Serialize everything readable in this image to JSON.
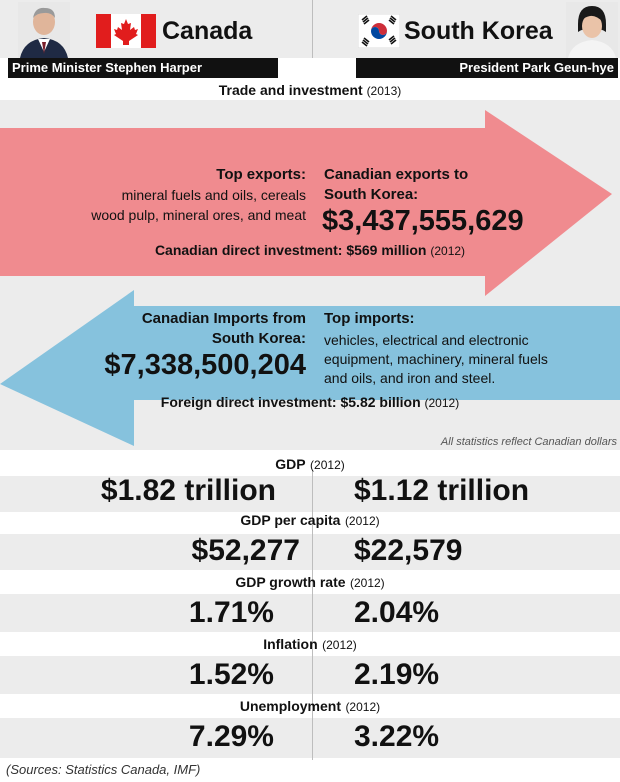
{
  "header": {
    "left_country": "Canada",
    "right_country": "South Korea",
    "left_leader": "Prime Minister Stephen Harper",
    "right_leader": "President Park Geun-hye",
    "left_flag_icon": "canada-flag-icon",
    "right_flag_icon": "south-korea-flag-icon"
  },
  "trade": {
    "title": "Trade and investment",
    "title_year": "(2013)",
    "exports_label": "Top exports:",
    "exports_line1": "mineral fuels and oils, cereals",
    "exports_line2": "wood pulp, mineral ores, and meat",
    "exports_to_line1": "Canadian exports to",
    "exports_to_line2": "South Korea:",
    "exports_value": "$3,437,555,629",
    "cdi_label": "Canadian direct investment: $569 million",
    "cdi_year": "(2012)",
    "imports_from_line1": "Canadian Imports from",
    "imports_from_line2": "South Korea:",
    "imports_value": "$7,338,500,204",
    "imports_label": "Top imports:",
    "imports_line1": "vehicles, electrical and electronic",
    "imports_line2": "equipment, machinery, mineral fuels",
    "imports_line3": "and oils, and iron and steel.",
    "fdi_label": "Foreign direct investment: $5.82 billion",
    "fdi_year": "(2012)"
  },
  "note": "All statistics reflect Canadian dollars",
  "stats": [
    {
      "title": "GDP",
      "year": "(2012)",
      "canada": "$1.82 trillion",
      "korea": "$1.12 trillion"
    },
    {
      "title": "GDP per capita",
      "year": "(2012)",
      "canada": "$52,277",
      "korea": "$22,579"
    },
    {
      "title": "GDP growth rate",
      "year": "(2012)",
      "canada": "1.71%",
      "korea": "2.04%"
    },
    {
      "title": "Inflation",
      "year": "(2012)",
      "canada": "1.52%",
      "korea": "2.19%"
    },
    {
      "title": "Unemployment",
      "year": "(2012)",
      "canada": "7.29%",
      "korea": "3.22%"
    }
  ],
  "sources": "(Sources: Statistics Canada, IMF)",
  "colors": {
    "export_arrow": "#f08b8f",
    "import_arrow": "#86c2dd",
    "stripe": "#ececec",
    "canada_red": "#e11d1d",
    "korea_red": "#cd2e3a",
    "korea_blue": "#0047a0"
  }
}
